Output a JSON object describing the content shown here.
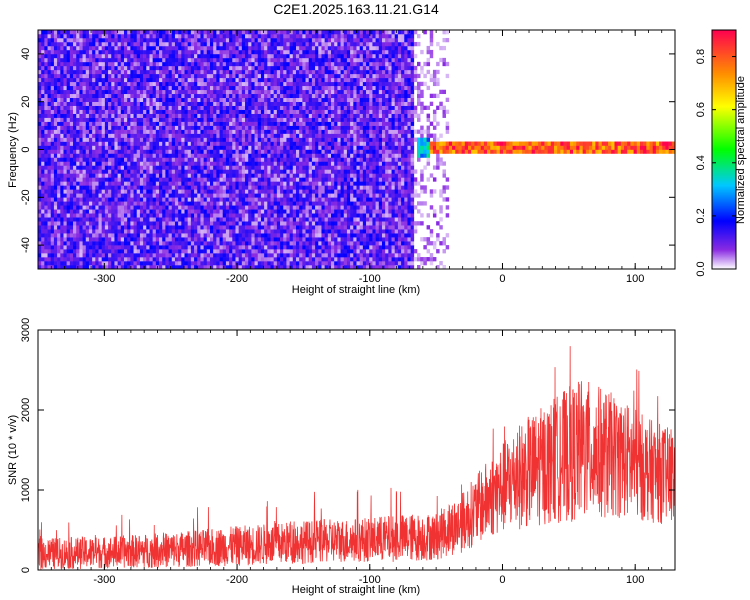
{
  "title": "C2E1.2025.163.11.21.G14",
  "chart_data": [
    {
      "type": "heatmap",
      "xlabel": "Height of straight line (km)",
      "ylabel": "Frequency (Hz)",
      "xlim": [
        -350,
        130
      ],
      "ylim": [
        -50,
        50
      ],
      "x_ticks": [
        -300,
        -200,
        -100,
        0,
        100
      ],
      "y_ticks": [
        -40,
        -20,
        0,
        20,
        40
      ],
      "colorbar": {
        "label": "Normalized spectral amplitude",
        "range": [
          0,
          0.9
        ],
        "ticks": [
          0,
          0.2,
          0.4,
          0.6,
          0.8
        ],
        "tick_labels": [
          "0.0",
          "0.2",
          "0.4",
          "0.6",
          "0.8"
        ]
      },
      "regions": [
        {
          "x_from": -350,
          "x_to": -67,
          "freq_from": -50,
          "freq_to": 50,
          "amplitude": 0.12,
          "pattern": "broadband noise"
        },
        {
          "x_from": -67,
          "x_to": -40,
          "freq_from": -50,
          "freq_to": 50,
          "amplitude": 0.05,
          "pattern": "fading noise"
        },
        {
          "x_from": -65,
          "x_to": -55,
          "freq_from": -3,
          "freq_to": 5,
          "amplitude": 0.35,
          "pattern": "blob"
        },
        {
          "x_from": -55,
          "x_to": 130,
          "freq_from": -2,
          "freq_to": 4,
          "amplitude": 0.9,
          "pattern": "narrow carrier near 0 Hz"
        }
      ]
    },
    {
      "type": "line",
      "xlabel": "Height of straight line (km)",
      "ylabel": "SNR (10 * v/v)",
      "xlim": [
        -350,
        130
      ],
      "ylim": [
        0,
        3000
      ],
      "x_ticks": [
        -300,
        -200,
        -100,
        0,
        100
      ],
      "y_ticks": [
        0,
        1000,
        2000,
        3000
      ],
      "series": [
        {
          "color": "#f03232",
          "x": [
            -350,
            -300,
            -250,
            -200,
            -150,
            -100,
            -75,
            -50,
            -30,
            -10,
            10,
            30,
            50,
            60,
            70,
            90,
            110,
            130
          ],
          "y": [
            200,
            220,
            250,
            300,
            350,
            380,
            400,
            420,
            600,
            900,
            1150,
            1300,
            1450,
            1500,
            1480,
            1400,
            1250,
            1150
          ],
          "spread": [
            200,
            200,
            220,
            250,
            270,
            280,
            300,
            300,
            380,
            500,
            650,
            750,
            850,
            900,
            850,
            750,
            650,
            600
          ]
        }
      ]
    }
  ]
}
